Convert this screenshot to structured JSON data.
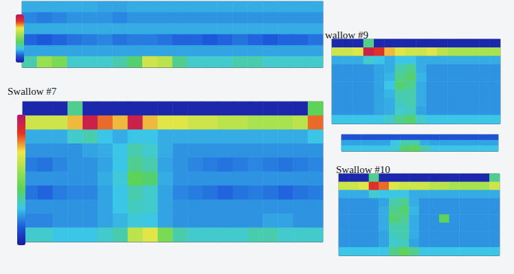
{
  "chart_data": [
    {
      "type": "heatmap",
      "tick_labels": false,
      "colorbar": {
        "range": [
          -10,
          150
        ]
      },
      "cells": [
        [
          30,
          30,
          30,
          30,
          30,
          28,
          28,
          30,
          30,
          30,
          30,
          30,
          30,
          30,
          30,
          30,
          30,
          30,
          30,
          30
        ],
        [
          22,
          20,
          22,
          25,
          25,
          25,
          22,
          25,
          25,
          25,
          25,
          25,
          25,
          25,
          25,
          25,
          25,
          25,
          25,
          25
        ],
        [
          30,
          30,
          30,
          30,
          30,
          30,
          30,
          30,
          30,
          30,
          30,
          30,
          30,
          30,
          30,
          30,
          30,
          30,
          30,
          30
        ],
        [
          15,
          12,
          15,
          18,
          20,
          22,
          18,
          20,
          20,
          18,
          15,
          15,
          12,
          15,
          18,
          15,
          12,
          15,
          15,
          18
        ],
        [
          28,
          28,
          28,
          28,
          28,
          28,
          28,
          28,
          28,
          28,
          28,
          28,
          28,
          28,
          28,
          28,
          28,
          28,
          28,
          28
        ],
        [
          45,
          80,
          70,
          40,
          40,
          40,
          45,
          55,
          95,
          90,
          50,
          40,
          40,
          40,
          45,
          45,
          40,
          40,
          40,
          40
        ]
      ]
    },
    {
      "type": "heatmap",
      "title": "Swallow #7",
      "tick_labels": false,
      "colorbar": {
        "range": [
          -10,
          150
        ]
      },
      "cells": [
        [
          -5,
          -5,
          -5,
          50,
          -5,
          -5,
          -5,
          -5,
          -5,
          -5,
          -5,
          -5,
          -5,
          -5,
          -5,
          -5,
          -5,
          -5,
          -5,
          60
        ],
        [
          95,
          95,
          95,
          110,
          140,
          120,
          110,
          140,
          110,
          100,
          100,
          95,
          95,
          90,
          90,
          85,
          85,
          85,
          90,
          120
        ],
        [
          30,
          30,
          30,
          40,
          45,
          35,
          30,
          35,
          35,
          30,
          30,
          30,
          30,
          30,
          30,
          30,
          30,
          30,
          30,
          35
        ],
        [
          25,
          25,
          25,
          25,
          28,
          30,
          35,
          45,
          40,
          30,
          25,
          25,
          25,
          25,
          25,
          25,
          25,
          25,
          25,
          25
        ],
        [
          20,
          18,
          22,
          25,
          25,
          28,
          35,
          50,
          45,
          28,
          25,
          22,
          20,
          18,
          20,
          22,
          20,
          18,
          20,
          22
        ],
        [
          25,
          25,
          25,
          25,
          25,
          30,
          38,
          60,
          55,
          30,
          25,
          25,
          25,
          25,
          25,
          25,
          25,
          25,
          25,
          25
        ],
        [
          18,
          15,
          20,
          22,
          22,
          28,
          35,
          45,
          40,
          28,
          22,
          20,
          18,
          15,
          18,
          20,
          18,
          15,
          18,
          20
        ],
        [
          25,
          25,
          25,
          25,
          25,
          28,
          35,
          42,
          40,
          28,
          25,
          25,
          25,
          25,
          25,
          25,
          25,
          25,
          25,
          25
        ],
        [
          22,
          22,
          25,
          25,
          25,
          28,
          32,
          38,
          36,
          28,
          25,
          25,
          25,
          25,
          25,
          25,
          28,
          28,
          25,
          25
        ],
        [
          40,
          40,
          35,
          35,
          35,
          40,
          45,
          90,
          100,
          70,
          45,
          40,
          40,
          40,
          40,
          45,
          45,
          40,
          40,
          40
        ]
      ]
    },
    {
      "type": "heatmap",
      "title": "wallow #9",
      "tick_labels": false,
      "colorbar": {
        "range": [
          -10,
          150
        ]
      },
      "cells": [
        [
          -5,
          -5,
          -5,
          50,
          -5,
          -5,
          -5,
          -5,
          -5,
          -5,
          -5,
          -5,
          -5,
          -5,
          -5,
          -5
        ],
        [
          95,
          95,
          100,
          140,
          130,
          110,
          100,
          95,
          95,
          100,
          90,
          85,
          85,
          85,
          85,
          85
        ],
        [
          30,
          30,
          30,
          40,
          35,
          30,
          35,
          35,
          30,
          30,
          30,
          30,
          30,
          30,
          30,
          30
        ],
        [
          25,
          25,
          25,
          25,
          28,
          30,
          45,
          50,
          30,
          25,
          25,
          25,
          25,
          25,
          25,
          25
        ],
        [
          25,
          25,
          25,
          25,
          28,
          32,
          50,
          55,
          32,
          25,
          25,
          25,
          25,
          25,
          25,
          25
        ],
        [
          25,
          25,
          25,
          25,
          28,
          35,
          55,
          50,
          30,
          25,
          25,
          25,
          25,
          25,
          25,
          25
        ],
        [
          25,
          25,
          25,
          25,
          28,
          32,
          45,
          45,
          30,
          25,
          25,
          25,
          25,
          25,
          25,
          25
        ],
        [
          25,
          25,
          25,
          25,
          28,
          30,
          42,
          45,
          30,
          25,
          25,
          25,
          25,
          25,
          25,
          25
        ],
        [
          25,
          25,
          25,
          25,
          28,
          30,
          40,
          42,
          28,
          25,
          25,
          25,
          25,
          25,
          25,
          25
        ],
        [
          35,
          35,
          35,
          35,
          35,
          40,
          50,
          55,
          40,
          35,
          35,
          35,
          35,
          35,
          35,
          35
        ]
      ]
    },
    {
      "type": "heatmap",
      "tick_labels": false,
      "colorbar": {
        "range": [
          -10,
          150
        ]
      },
      "cells": [
        [
          10,
          10,
          10,
          10,
          10,
          10,
          10,
          10,
          10,
          10,
          10,
          10,
          10,
          10,
          10,
          10
        ],
        [
          28,
          28,
          28,
          28,
          28,
          35,
          45,
          45,
          30,
          28,
          28,
          28,
          28,
          28,
          28,
          28
        ],
        [
          35,
          35,
          35,
          35,
          35,
          40,
          55,
          60,
          45,
          35,
          35,
          35,
          35,
          35,
          35,
          35
        ]
      ]
    },
    {
      "type": "heatmap",
      "title": "Swallow #10",
      "tick_labels": false,
      "colorbar": {
        "range": [
          -10,
          150
        ]
      },
      "cells": [
        [
          -5,
          -5,
          -5,
          50,
          -5,
          -5,
          -5,
          -5,
          -5,
          -5,
          -5,
          -5,
          -5,
          -5,
          -5,
          50
        ],
        [
          95,
          95,
          100,
          130,
          120,
          100,
          95,
          95,
          95,
          90,
          90,
          85,
          85,
          85,
          85,
          95
        ],
        [
          30,
          30,
          30,
          40,
          35,
          35,
          35,
          30,
          30,
          30,
          30,
          30,
          30,
          30,
          30,
          30
        ],
        [
          25,
          25,
          25,
          25,
          28,
          45,
          50,
          30,
          25,
          25,
          25,
          25,
          25,
          25,
          25,
          25
        ],
        [
          25,
          25,
          25,
          25,
          30,
          50,
          55,
          32,
          25,
          25,
          25,
          25,
          25,
          25,
          25,
          25
        ],
        [
          25,
          25,
          25,
          25,
          30,
          55,
          50,
          30,
          25,
          25,
          60,
          25,
          25,
          25,
          25,
          25
        ],
        [
          25,
          25,
          25,
          25,
          30,
          45,
          45,
          30,
          25,
          25,
          25,
          25,
          25,
          25,
          25,
          25
        ],
        [
          25,
          25,
          25,
          25,
          28,
          42,
          45,
          30,
          25,
          25,
          25,
          25,
          25,
          25,
          25,
          25
        ],
        [
          25,
          25,
          25,
          25,
          28,
          40,
          42,
          28,
          25,
          25,
          25,
          25,
          25,
          25,
          25,
          25
        ],
        [
          35,
          35,
          35,
          35,
          35,
          50,
          60,
          50,
          35,
          35,
          35,
          35,
          35,
          35,
          35,
          35
        ]
      ]
    }
  ]
}
